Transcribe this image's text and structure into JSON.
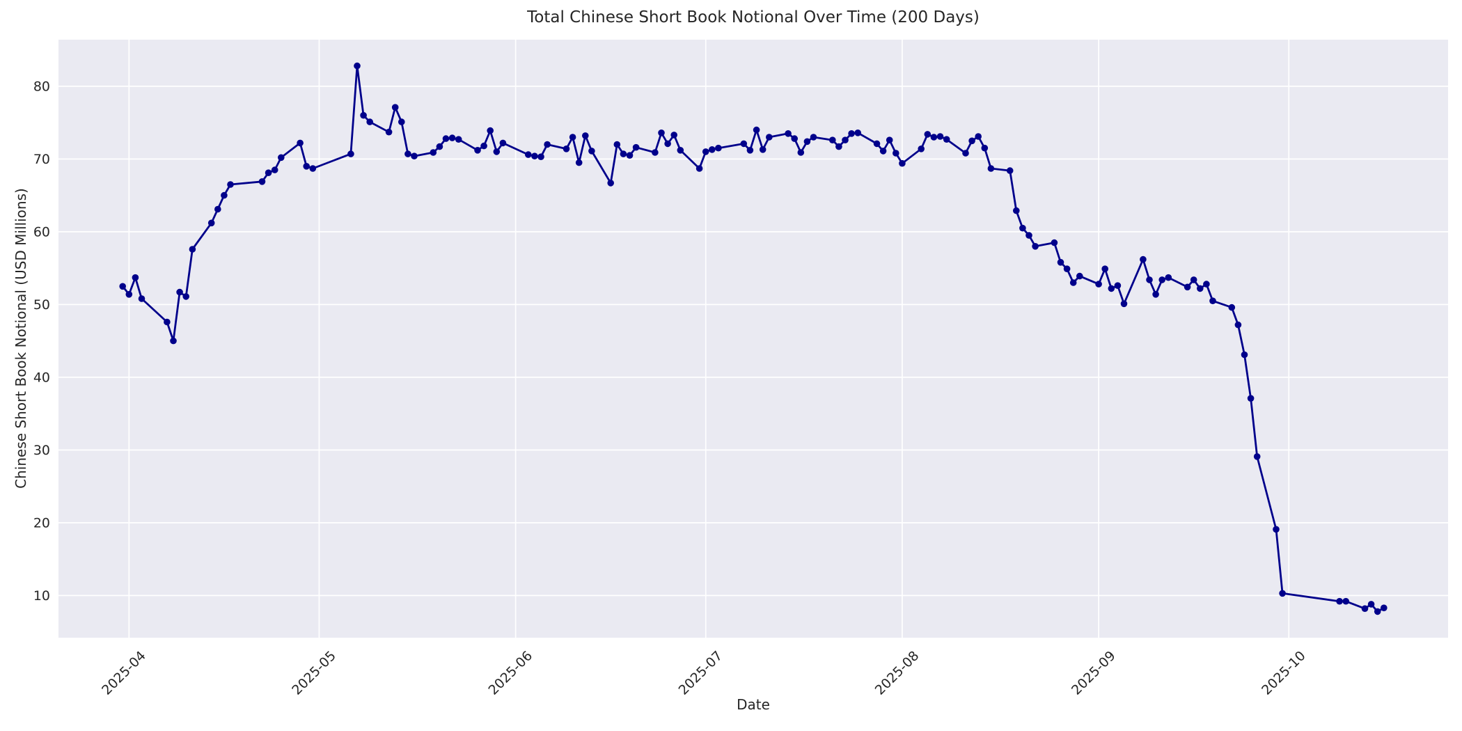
{
  "chart_data": {
    "type": "line",
    "title": "Total Chinese Short Book Notional Over Time (200 Days)",
    "xlabel": "Date",
    "ylabel": "Chinese Short Book Notional (USD Millions)",
    "grid": true,
    "legend_position": "none",
    "ylim": [
      4.2,
      86.4
    ],
    "y_ticks": [
      10,
      20,
      30,
      40,
      50,
      60,
      70,
      80
    ],
    "x_range_dates": [
      "2025-03-31",
      "2025-10-16"
    ],
    "x_ticks": [
      {
        "date": "2025-04-01",
        "label": "2025-04"
      },
      {
        "date": "2025-05-01",
        "label": "2025-05"
      },
      {
        "date": "2025-06-01",
        "label": "2025-06"
      },
      {
        "date": "2025-07-01",
        "label": "2025-07"
      },
      {
        "date": "2025-08-01",
        "label": "2025-08"
      },
      {
        "date": "2025-09-01",
        "label": "2025-09"
      },
      {
        "date": "2025-10-01",
        "label": "2025-10"
      }
    ],
    "colors": {
      "line": "#00008b",
      "marker": "#00008b",
      "plot_background": "#eaeaf2",
      "grid": "#ffffff",
      "figure_background": "#ffffff",
      "text": "#262626"
    },
    "series": [
      {
        "name": "Total Chinese Short Book Notional",
        "dates": [
          "2025-03-31",
          "2025-04-01",
          "2025-04-02",
          "2025-04-03",
          "2025-04-07",
          "2025-04-08",
          "2025-04-09",
          "2025-04-10",
          "2025-04-11",
          "2025-04-14",
          "2025-04-15",
          "2025-04-16",
          "2025-04-17",
          "2025-04-22",
          "2025-04-23",
          "2025-04-24",
          "2025-04-25",
          "2025-04-28",
          "2025-04-29",
          "2025-04-30",
          "2025-05-06",
          "2025-05-07",
          "2025-05-08",
          "2025-05-09",
          "2025-05-12",
          "2025-05-13",
          "2025-05-14",
          "2025-05-15",
          "2025-05-16",
          "2025-05-19",
          "2025-05-20",
          "2025-05-21",
          "2025-05-22",
          "2025-05-23",
          "2025-05-26",
          "2025-05-27",
          "2025-05-28",
          "2025-05-29",
          "2025-05-30",
          "2025-06-03",
          "2025-06-04",
          "2025-06-05",
          "2025-06-06",
          "2025-06-09",
          "2025-06-10",
          "2025-06-11",
          "2025-06-12",
          "2025-06-13",
          "2025-06-16",
          "2025-06-17",
          "2025-06-18",
          "2025-06-19",
          "2025-06-20",
          "2025-06-23",
          "2025-06-24",
          "2025-06-25",
          "2025-06-26",
          "2025-06-27",
          "2025-06-30",
          "2025-07-01",
          "2025-07-02",
          "2025-07-03",
          "2025-07-07",
          "2025-07-08",
          "2025-07-09",
          "2025-07-10",
          "2025-07-11",
          "2025-07-14",
          "2025-07-15",
          "2025-07-16",
          "2025-07-17",
          "2025-07-18",
          "2025-07-21",
          "2025-07-22",
          "2025-07-23",
          "2025-07-24",
          "2025-07-25",
          "2025-07-28",
          "2025-07-29",
          "2025-07-30",
          "2025-07-31",
          "2025-08-01",
          "2025-08-04",
          "2025-08-05",
          "2025-08-06",
          "2025-08-07",
          "2025-08-08",
          "2025-08-11",
          "2025-08-12",
          "2025-08-13",
          "2025-08-14",
          "2025-08-15",
          "2025-08-18",
          "2025-08-19",
          "2025-08-20",
          "2025-08-21",
          "2025-08-22",
          "2025-08-25",
          "2025-08-26",
          "2025-08-27",
          "2025-08-28",
          "2025-08-29",
          "2025-09-01",
          "2025-09-02",
          "2025-09-03",
          "2025-09-04",
          "2025-09-05",
          "2025-09-08",
          "2025-09-09",
          "2025-09-10",
          "2025-09-11",
          "2025-09-12",
          "2025-09-15",
          "2025-09-16",
          "2025-09-17",
          "2025-09-18",
          "2025-09-19",
          "2025-09-22",
          "2025-09-23",
          "2025-09-24",
          "2025-09-25",
          "2025-09-26",
          "2025-09-29",
          "2025-09-30",
          "2025-10-09",
          "2025-10-10",
          "2025-10-13",
          "2025-10-14",
          "2025-10-15",
          "2025-10-16"
        ],
        "values": [
          52.5,
          51.4,
          53.7,
          50.8,
          47.6,
          45.0,
          51.7,
          51.1,
          57.6,
          61.2,
          63.1,
          65.0,
          66.5,
          66.9,
          68.1,
          68.5,
          70.2,
          72.2,
          69.0,
          68.7,
          70.7,
          82.8,
          76.0,
          75.1,
          73.7,
          77.1,
          75.1,
          70.7,
          70.4,
          70.9,
          71.7,
          72.8,
          72.9,
          72.7,
          71.2,
          71.8,
          73.9,
          71.0,
          72.2,
          70.6,
          70.4,
          70.3,
          72.0,
          71.4,
          73.0,
          69.5,
          73.2,
          71.1,
          66.7,
          72.0,
          70.7,
          70.5,
          71.6,
          70.9,
          73.6,
          72.1,
          73.3,
          71.2,
          68.7,
          71.0,
          71.3,
          71.5,
          72.1,
          71.2,
          74.0,
          71.3,
          73.0,
          73.5,
          72.8,
          70.9,
          72.4,
          73.0,
          72.6,
          71.7,
          72.6,
          73.5,
          73.6,
          72.1,
          71.1,
          72.6,
          70.8,
          69.4,
          71.4,
          73.4,
          73.0,
          73.1,
          72.7,
          70.8,
          72.5,
          73.1,
          71.5,
          68.7,
          68.4,
          62.9,
          60.5,
          59.5,
          58.0,
          58.5,
          55.8,
          54.9,
          53.0,
          53.9,
          52.8,
          54.9,
          52.2,
          52.6,
          50.1,
          56.2,
          53.4,
          51.4,
          53.4,
          53.7,
          52.4,
          53.4,
          52.2,
          52.8,
          50.5,
          49.6,
          47.2,
          43.1,
          37.1,
          29.1,
          19.1,
          10.3,
          9.2,
          9.2,
          8.2,
          8.8,
          7.8,
          8.3
        ]
      }
    ]
  }
}
